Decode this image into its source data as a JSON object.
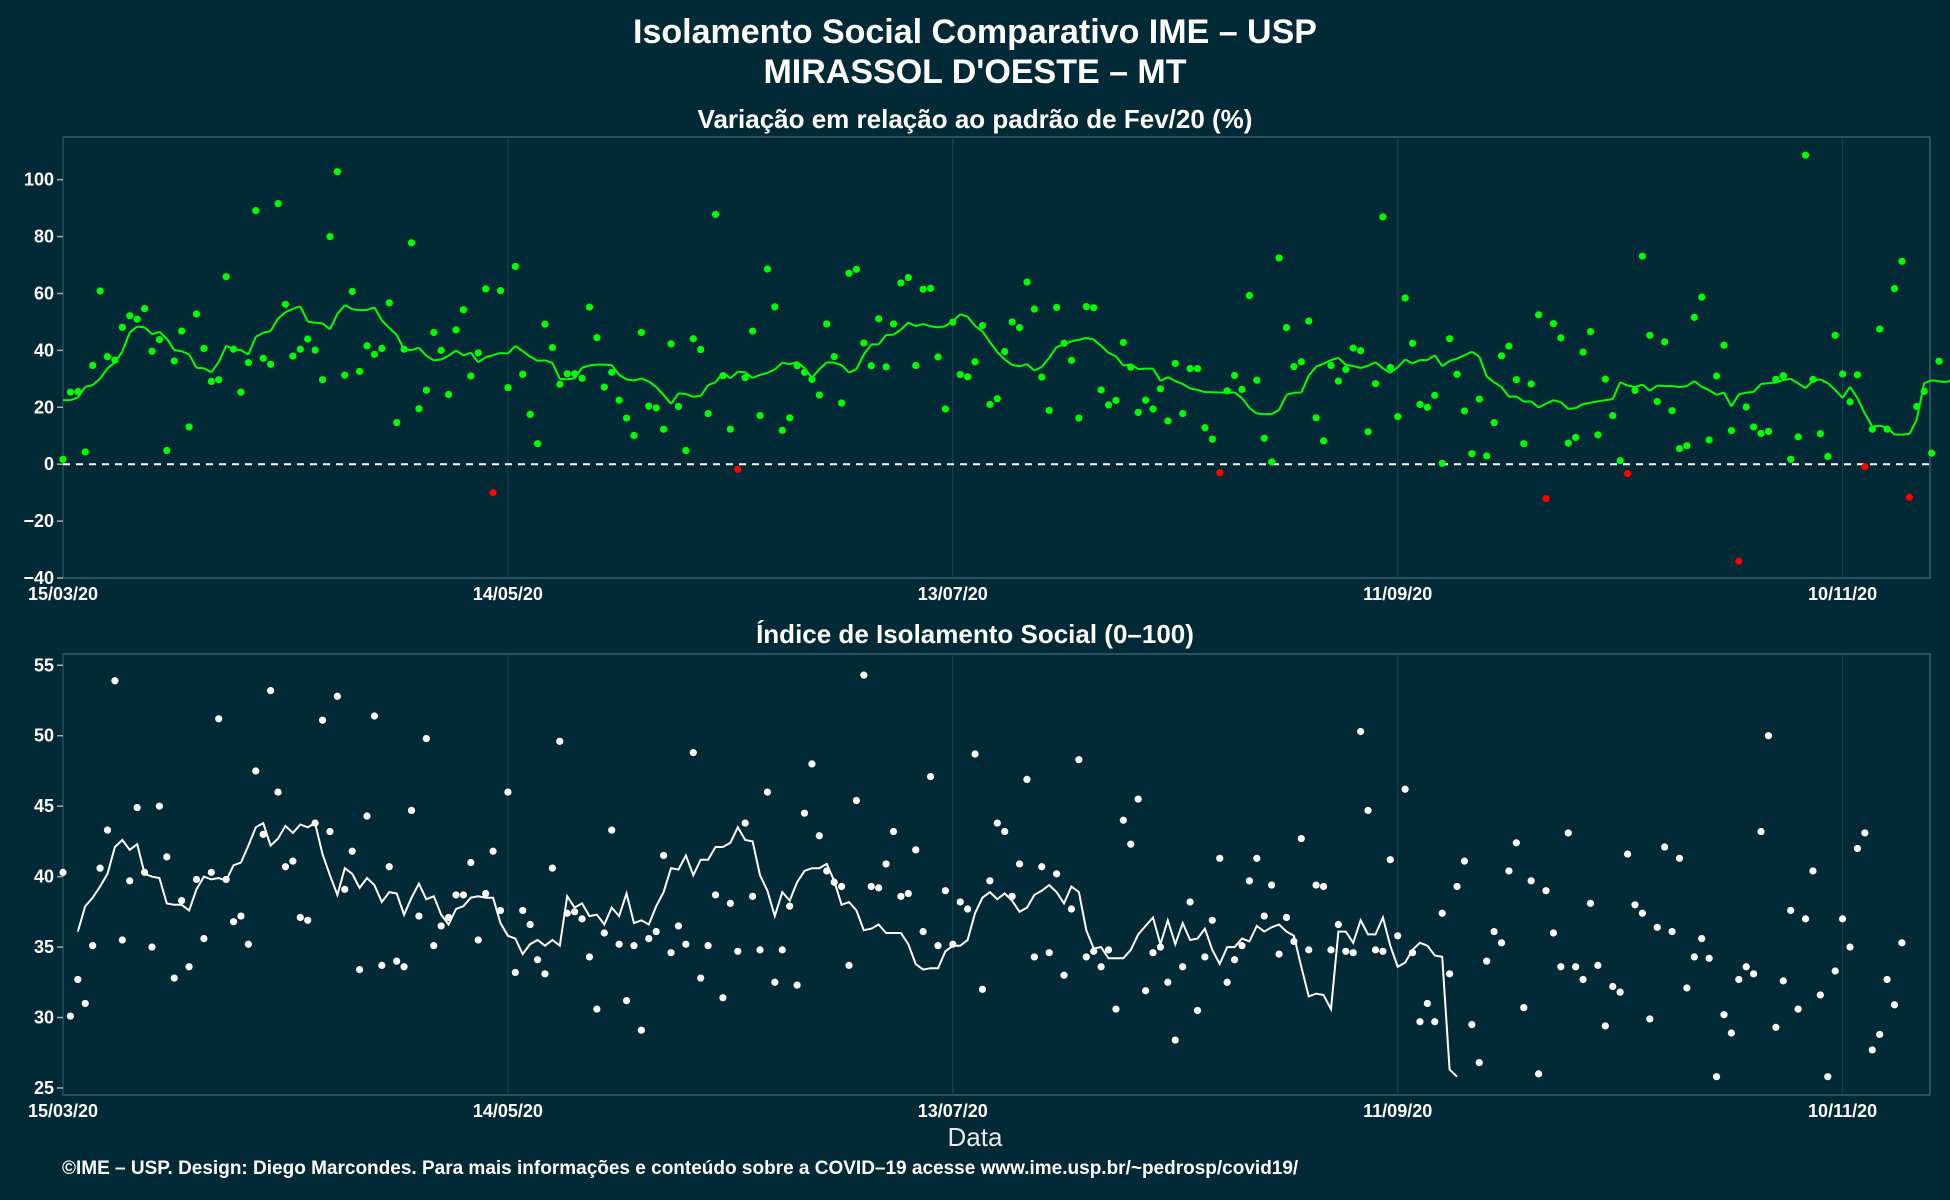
{
  "title_line1": "Isolamento Social Comparativo IME – USP",
  "title_line2": "MIRASSOL D'OESTE – MT",
  "footer": "©IME – USP. Design: Diego Marcondes. Para mais informações e conteúdo sobre a COVID–19 acesse www.ime.usp.br/~pedrosp/covid19/",
  "colors": {
    "background": "#022936",
    "grid": "#1d4553",
    "green": "#00ff00",
    "red": "#ff0000",
    "white": "#ffffff"
  },
  "chart_data": [
    {
      "type": "scatter",
      "title": "Variação em relação ao padrão de Fev/20 (%)",
      "xlabel": "",
      "ylabel": "",
      "x_ticks": [
        "15/03/20",
        "14/05/20",
        "13/07/20",
        "11/09/20",
        "10/11/20"
      ],
      "y_ticks": [
        100,
        80,
        60,
        40,
        20,
        0,
        -20,
        -40
      ],
      "ylim": [
        -40,
        115
      ],
      "x_start": "2020-03-15",
      "reference_line": 0,
      "points": [
        1.7,
        25.3,
        25.5,
        4.3,
        34.7,
        60.9,
        37.8,
        36.6,
        48.1,
        52.2,
        51,
        54.7,
        39.7,
        43.8,
        4.8,
        36.3,
        46.8,
        13.1,
        52.8,
        40.7,
        29.1,
        29.7,
        65.9,
        40.4,
        25.3,
        35.7,
        89.1,
        37.2,
        35.1,
        91.6,
        56.2,
        38,
        40.4,
        44,
        40.1,
        29.7,
        80,
        102.8,
        31.3,
        60.7,
        32.6,
        41.6,
        38.6,
        40.7,
        56.7,
        14.6,
        40.4,
        77.8,
        19.5,
        26,
        46.3,
        40,
        24.5,
        47.2,
        54.3,
        31,
        39.1,
        61.6,
        -10,
        61,
        26.9,
        69.5,
        31.6,
        17.5,
        7.2,
        49.2,
        41,
        28.1,
        31.8,
        31.8,
        30.2,
        55.2,
        44.5,
        27.1,
        32.3,
        22.5,
        16.2,
        10.1,
        46.3,
        20.4,
        19.8,
        12.3,
        42.3,
        20.3,
        4.8,
        44.1,
        40.3,
        17.8,
        87.8,
        31.1,
        12.3,
        -1.8,
        30.4,
        46.8,
        17.1,
        68.6,
        55.3,
        11.9,
        16.3,
        34.6,
        32.3,
        29.8,
        24.3,
        49.3,
        37.8,
        21.5,
        67.1,
        68.5,
        42.6,
        34.6,
        51.1,
        34.2,
        49.3,
        63.7,
        65.6,
        34.7,
        61.5,
        61.8,
        37.7,
        19.4,
        49.9,
        31.5,
        30.7,
        36,
        48.7,
        21,
        23,
        39.6,
        50,
        48,
        64,
        54.5,
        30.6,
        18.9,
        55.1,
        42.5,
        36.5,
        16.2,
        55.4,
        55,
        26.1,
        20.8,
        22.4,
        42.8,
        34.1,
        18.2,
        22.5,
        19.4,
        26.5,
        15.2,
        35.4,
        17.8,
        33.6,
        33.6,
        12.8,
        8.8,
        -3,
        25.8,
        31.2,
        26.3,
        59.3,
        29.5,
        9.1,
        0.8,
        72.5,
        48,
        34.3,
        36,
        50.3,
        16.3,
        8.2,
        34.7,
        29.2,
        33.3,
        40.8,
        39.9,
        11.4,
        28.3,
        86.9,
        34,
        16.7,
        58.4,
        42.5,
        21,
        20,
        24.2,
        0.3,
        44.1,
        31.6,
        18.7,
        3.7,
        22.9,
        2.9,
        14.6,
        38.1,
        41.5,
        29.7,
        7.2,
        28.2,
        52.5,
        -12.1,
        49.4,
        44.4,
        7.4,
        9.4,
        39.4,
        46.6,
        10.3,
        29.9,
        17.1,
        1.2,
        -3.3,
        25.9,
        73.1,
        45.3,
        22,
        43,
        18.8,
        5.5,
        6.5,
        51.6,
        58.7,
        8.5,
        31,
        41.8,
        11.8,
        -34.1,
        20.1,
        13.1,
        10.8,
        11.5,
        29.8,
        31.1,
        1.7,
        9.6,
        108.6,
        29.8,
        10.7,
        2.7,
        45.3,
        31.7,
        21.9,
        31.4,
        -0.9,
        12.3,
        47.5,
        12.3,
        61.7,
        71.3,
        -11.6,
        20.3,
        25.6,
        3.9,
        36.2
      ],
      "trend": [
        22.5,
        22.5,
        23.4,
        27.2,
        27.8,
        30.1,
        33.7,
        35.8,
        39.6,
        46.3,
        48.4,
        48.1,
        45.7,
        46.5,
        44.1,
        40.1,
        39.7,
        38.6,
        33.9,
        33.7,
        32.3,
        35.9,
        41.6,
        40.4,
        40.1,
        38.5,
        44.8,
        46.2,
        46.8,
        51.2,
        53.4,
        54.6,
        55.5,
        50.1,
        49.7,
        49.5,
        47.4,
        52.8,
        55.9,
        54.5,
        54.1,
        54.2,
        55.1,
        50.5,
        47.9,
        45.4,
        40.3,
        40.1,
        40.9,
        38.1,
        36.5,
        36.8,
        38.1,
        40,
        38.2,
        39.2,
        35.8,
        37.6,
        38.3,
        39.1,
        38.9,
        41.6,
        39.7,
        37.8,
        36.3,
        36.5,
        35.6,
        30,
        29.8,
        30.2,
        33.9,
        34.7,
        35,
        35,
        34.8,
        31.4,
        29.8,
        29.4,
        30.1,
        29.1,
        27.1,
        24.3,
        21.2,
        24.9,
        24.7,
        23.7,
        24,
        27.8,
        28.8,
        32.2,
        30.2,
        32.5,
        32.3,
        30.3,
        31.4,
        32.1,
        33.3,
        35.7,
        35.1,
        35.9,
        33.8,
        30.3,
        33.4,
        35.8,
        35.7,
        34.8,
        32.2,
        33.4,
        38.6,
        42.1,
        42.1,
        45.4,
        45.5,
        47.3,
        49.8,
        48.5,
        49.3,
        48.5,
        48.1,
        48.5,
        50.3,
        52.7,
        51.8,
        48.6,
        46.7,
        42.9,
        39.4,
        36.8,
        34.9,
        34.4,
        35.2,
        32.9,
        34.2,
        37.4,
        41.2,
        42.1,
        43.2,
        43.7,
        44.4,
        43.8,
        41.6,
        39.1,
        37.9,
        34.7,
        35.1,
        33.4,
        33.6,
        33.6,
        29.3,
        30.6,
        29.2,
        28.2,
        26.6,
        26.1,
        25.3,
        25.3,
        25.2,
        25.1,
        25.2,
        23.2,
        19.8,
        17.8,
        17.6,
        17.6,
        19.1,
        24.4,
        25.1,
        25.2,
        31.1,
        34.3,
        35.3,
        36.6,
        37.4,
        34.9,
        34.5,
        33.8,
        34.6,
        35.8,
        33.7,
        32.1,
        34.1,
        36.8,
        35.4,
        36.6,
        36.6,
        38.3,
        34.4,
        36.3,
        37.1,
        38.3,
        39.5,
        37.8,
        30.8,
        28.8,
        27.1,
        23.7,
        23.8,
        22,
        22.1,
        19.9,
        21.3,
        22.5,
        21.8,
        19.4,
        19.7,
        21.1,
        21.6,
        22.1,
        22.5,
        22.9,
        28.8,
        27.6,
        27.1,
        28,
        25.8,
        27.6,
        27.5,
        27.5,
        27.1,
        27.5,
        29.2,
        27.2,
        26,
        24.4,
        25.2,
        20.3,
        24.6,
        25.1,
        25.4,
        28.2,
        28.5,
        28.7,
        29.6,
        30,
        28.4,
        26.7,
        29.4,
        29.8,
        28.5,
        26.1,
        23.3,
        27.2,
        23.2,
        17.8,
        13.2,
        13.5,
        12.9,
        10.4,
        10.4,
        10.6,
        15.7,
        28.5,
        29.5,
        29.1,
        28.8,
        30,
        30.7,
        29.7,
        30.3,
        28.4,
        20.2,
        18,
        19.5,
        19.7,
        18.7,
        18.4,
        26.6,
        33.3,
        27.2,
        30,
        32.3,
        31.5,
        27.2,
        27.6,
        30.2
      ]
    },
    {
      "type": "scatter",
      "title": "Índice de Isolamento Social (0–100)",
      "xlabel": "Data",
      "ylabel": "",
      "x_ticks": [
        "15/03/20",
        "14/05/20",
        "13/07/20",
        "11/09/20",
        "10/11/20"
      ],
      "y_ticks": [
        55,
        50,
        45,
        40,
        35,
        30,
        25
      ],
      "ylim": [
        24.5,
        55.8
      ],
      "x_start": "2020-03-15",
      "points": [
        40.3,
        30.1,
        32.7,
        31,
        35.1,
        40.6,
        43.3,
        53.9,
        35.5,
        39.7,
        44.9,
        40.3,
        35,
        45,
        41.4,
        32.8,
        38.3,
        33.6,
        39.8,
        35.6,
        40.3,
        51.2,
        39.8,
        36.8,
        37.2,
        35.2,
        47.5,
        43,
        53.2,
        46,
        40.7,
        41.1,
        37.1,
        36.9,
        43.8,
        51.1,
        43.2,
        52.8,
        39.1,
        41.8,
        33.4,
        44.3,
        51.4,
        33.7,
        40.7,
        34,
        33.6,
        44.7,
        37.2,
        49.8,
        35.1,
        36.5,
        37.1,
        38.7,
        38.7,
        41,
        35.5,
        38.8,
        41.8,
        37.6,
        46,
        33.2,
        37.6,
        36.6,
        34.1,
        33.1,
        40.6,
        49.6,
        37.4,
        37.5,
        37,
        34.3,
        30.6,
        36,
        43.3,
        35.2,
        31.2,
        35.1,
        29.1,
        35.6,
        36.1,
        41.5,
        34.6,
        36.5,
        35.2,
        48.8,
        32.8,
        35.1,
        38.7,
        31.4,
        38.1,
        34.7,
        43.8,
        38.6,
        34.8,
        46,
        32.5,
        34.8,
        37.9,
        32.3,
        44.5,
        48,
        42.9,
        40.4,
        39.6,
        39.3,
        33.7,
        45.4,
        54.3,
        39.3,
        39.2,
        40.9,
        43.2,
        38.6,
        38.8,
        41.9,
        36.1,
        47.1,
        35.1,
        39,
        35.2,
        38.2,
        37.7,
        48.7,
        32,
        39.7,
        43.8,
        43.2,
        38.6,
        40.9,
        46.9,
        34.3,
        40.7,
        34.6,
        40.2,
        33,
        37.7,
        48.3,
        34.3,
        34.7,
        33.6,
        34.8,
        30.6,
        44,
        42.3,
        45.5,
        31.9,
        34.6,
        35,
        32.5,
        28.4,
        33.6,
        38.2,
        30.5,
        34.3,
        36.9,
        41.3,
        32.5,
        34.1,
        35.1,
        39.7,
        41.3,
        37.2,
        39.4,
        34.5,
        37.1,
        35.4,
        42.7,
        34.8,
        39.4,
        39.3,
        34.8,
        36.6,
        34.7,
        34.6,
        50.3,
        44.7,
        34.8,
        34.7,
        41.2,
        35.8,
        46.2,
        34.6,
        29.7,
        31,
        29.7,
        37.4,
        33.1,
        39.3,
        41.1,
        29.5,
        26.8,
        34,
        36.1,
        35.3,
        40.4,
        42.4,
        30.7,
        39.7,
        26,
        39,
        36,
        33.6,
        43.1,
        33.6,
        32.7,
        38.1,
        33.7,
        29.4,
        32.2,
        31.8,
        41.6,
        38,
        37.4,
        29.9,
        36.4,
        42.1,
        36.1,
        41.3,
        32.1,
        34.3,
        35.6,
        34.2,
        25.8,
        30.2,
        28.9,
        32.7,
        33.6,
        33.1,
        43.2,
        50,
        29.3,
        32.6,
        37.6,
        30.6,
        37,
        40.4,
        31.6,
        25.8,
        33.3,
        37,
        35,
        42,
        43.1,
        27.7,
        28.8,
        32.7,
        30.9,
        35.3
      ],
      "trend": [
        36.1,
        37.9,
        38.5,
        39.3,
        40.2,
        42.1,
        42.6,
        41.9,
        42.3,
        40.2,
        40,
        39.9,
        38.1,
        38,
        38,
        37.6,
        39.1,
        40,
        39.8,
        39.9,
        39.7,
        40.8,
        41,
        42.2,
        43.5,
        43.8,
        42.2,
        42.7,
        43.6,
        43.1,
        43.7,
        43.5,
        43.8,
        41.6,
        40.1,
        38.7,
        40.6,
        40.2,
        39.2,
        39.9,
        39.4,
        38.2,
        38.9,
        38.8,
        37.3,
        38.5,
        39.5,
        38.4,
        38.6,
        37.3,
        36.6,
        37.7,
        37.9,
        38.5,
        38.6,
        38.5,
        38.5,
        36.7,
        35.8,
        35.6,
        34.5,
        35.2,
        35.5,
        35.1,
        35.5,
        35.1,
        38.6,
        37.8,
        38.1,
        37.2,
        37.3,
        36.6,
        37.8,
        37.2,
        38.8,
        36.7,
        36.9,
        36.6,
        37.9,
        38.9,
        40.6,
        40.5,
        41.5,
        40.1,
        41.2,
        41.2,
        42.1,
        42.1,
        42.4,
        43.5,
        42.6,
        42.5,
        40.1,
        39,
        37.2,
        38.9,
        38.3,
        39.6,
        40.4,
        40.6,
        40.6,
        40.9,
        39.7,
        38,
        38.2,
        37.6,
        36.2,
        36.3,
        36.6,
        36,
        36,
        36,
        35.2,
        33.8,
        33.4,
        33.5,
        33.5,
        34.7,
        35.1,
        35.1,
        35.5,
        37.4,
        38.5,
        38.9,
        38.4,
        38.8,
        38.3,
        37.5,
        37.8,
        38.7,
        39,
        39.4,
        38.9,
        38.1,
        39.3,
        38.9,
        36.2,
        34.9,
        35,
        34.2,
        34.2,
        34.2,
        34.8,
        35.9,
        36.5,
        37.1,
        35.2,
        36.9,
        35.2,
        36.7,
        35.5,
        35.6,
        36.3,
        34.8,
        33.8,
        35,
        35,
        35.6,
        35.4,
        36.5,
        36.1,
        36.4,
        36.6,
        36.1,
        35.8,
        33.6,
        31.5,
        31.7,
        31.6,
        30.6,
        36.1,
        36.1,
        35.3,
        36.9,
        35.9,
        35.9,
        37.1,
        35.1,
        33.6,
        33.9,
        34.8,
        35.3,
        35.1,
        34.4,
        34.3,
        26.3,
        25.8
      ]
    }
  ]
}
